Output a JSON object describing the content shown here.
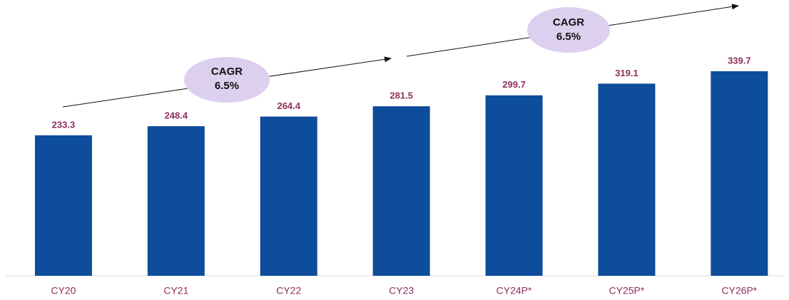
{
  "chart_data": {
    "type": "bar",
    "categories": [
      "CY20",
      "CY21",
      "CY22",
      "CY23",
      "CY24P*",
      "CY25P*",
      "CY26P*"
    ],
    "values": [
      233.3,
      248.4,
      264.4,
      281.5,
      299.7,
      319.1,
      339.7
    ],
    "color": "#0e4c9c",
    "ylim": [
      0,
      400
    ],
    "annotations": [
      {
        "lines": [
          "CAGR",
          "6.5%"
        ]
      },
      {
        "lines": [
          "CAGR",
          "6.5%"
        ]
      }
    ]
  }
}
